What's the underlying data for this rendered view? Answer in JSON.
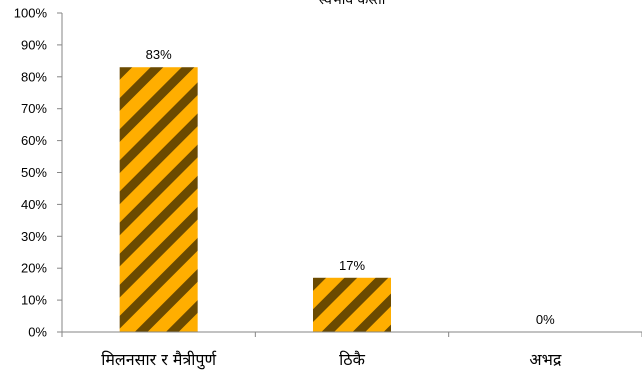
{
  "colors": {
    "bar_dark": "#6b4a00",
    "bar_light": "#ffae00",
    "axis": "#868686"
  },
  "chart_data": {
    "type": "bar",
    "title": "स्वभाव कस्तो",
    "categories": [
      "मिलनसार र मैत्रीपुर्ण",
      "ठिकै",
      "अभद्र"
    ],
    "values": [
      83,
      17,
      0
    ],
    "value_labels": [
      "83%",
      "17%",
      "0%"
    ],
    "ylim": [
      0,
      100
    ],
    "yticks": [
      0,
      10,
      20,
      30,
      40,
      50,
      60,
      70,
      80,
      90,
      100
    ],
    "ytick_labels": [
      "0%",
      "10%",
      "20%",
      "30%",
      "40%",
      "50%",
      "60%",
      "70%",
      "80%",
      "90%",
      "100%"
    ],
    "xlabel": "",
    "ylabel": "",
    "grid": false,
    "legend": "none"
  }
}
